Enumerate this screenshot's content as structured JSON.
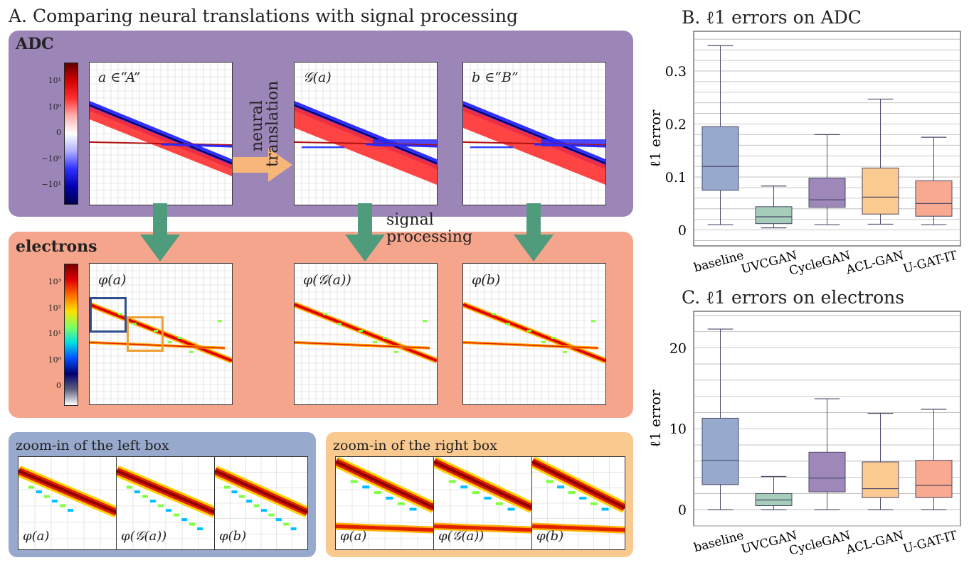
{
  "figure": {
    "panel_a_title": "A. Comparing neural translations with signal processing",
    "adc_label": "ADC",
    "electrons_label": "electrons",
    "neural_translation_label": [
      "neural",
      "translation"
    ],
    "signal_processing_label": [
      "signal",
      "processing"
    ],
    "adc_panels": [
      "a ∈“A”",
      "𝒢(a)",
      "b ∈“B”"
    ],
    "electron_panels": [
      "φ(a)",
      "φ(𝒢(a))",
      "φ(b)"
    ],
    "adc_colorbar_ticks": [
      "10¹",
      "10⁰",
      "0",
      "−10⁰",
      "−10¹"
    ],
    "electron_colorbar_ticks": [
      "10³",
      "10²",
      "10¹",
      "10⁰",
      "0"
    ],
    "zoom_left_title": "zoom-in of the left box",
    "zoom_right_title": "zoom-in of the right box",
    "zoom_labels": [
      "φ(a)",
      "φ(𝒢(a))",
      "φ(b)"
    ],
    "colors": {
      "adc_bg": "#9c86b8",
      "electrons_bg": "#f5a58b",
      "zoom_left_bg": "#97a9cc",
      "zoom_right_bg": "#f9c98f",
      "arrow_green": "#4e9c7c",
      "arrow_orange": "#f7b77a"
    }
  },
  "chart_data": [
    {
      "type": "box",
      "title": "B. ℓ1 errors on ADC",
      "ylabel": "ℓ1 error",
      "categories": [
        "baseline",
        "UVCGAN",
        "CycleGAN",
        "ACL-GAN",
        "U-GAT-IT"
      ],
      "ylim": [
        -0.03,
        0.375
      ],
      "yticks": [
        0,
        0.1,
        0.2,
        0.3
      ],
      "ytick_labels": [
        "0",
        "0.1",
        "0.2",
        "0.3"
      ],
      "boxes": [
        {
          "whisker_low": 0.01,
          "q1": 0.075,
          "median": 0.12,
          "q3": 0.195,
          "whisker_high": 0.348,
          "color": "#97aacd"
        },
        {
          "whisker_low": 0.004,
          "q1": 0.012,
          "median": 0.025,
          "q3": 0.044,
          "whisker_high": 0.083,
          "color": "#a5cdb9"
        },
        {
          "whisker_low": 0.01,
          "q1": 0.043,
          "median": 0.057,
          "q3": 0.098,
          "whisker_high": 0.18,
          "color": "#9e88b9"
        },
        {
          "whisker_low": 0.011,
          "q1": 0.03,
          "median": 0.062,
          "q3": 0.117,
          "whisker_high": 0.247,
          "color": "#fbca90"
        },
        {
          "whisker_low": 0.01,
          "q1": 0.026,
          "median": 0.05,
          "q3": 0.093,
          "whisker_high": 0.175,
          "color": "#f8a990"
        }
      ],
      "grid": true
    },
    {
      "type": "box",
      "title": "C. ℓ1 errors on electrons",
      "ylabel": "ℓ1 error",
      "categories": [
        "baseline",
        "UVCGAN",
        "CycleGAN",
        "ACL-GAN",
        "U-GAT-IT"
      ],
      "ylim": [
        -2.0,
        24.5
      ],
      "yticks": [
        0,
        10,
        20
      ],
      "ytick_labels": [
        "0",
        "10",
        "20"
      ],
      "boxes": [
        {
          "whisker_low": 0,
          "q1": 3.1,
          "median": 6.1,
          "q3": 11.3,
          "whisker_high": 22.3,
          "color": "#97aacd"
        },
        {
          "whisker_low": 0,
          "q1": 0.5,
          "median": 1.2,
          "q3": 2.0,
          "whisker_high": 4.1,
          "color": "#a5cdb9"
        },
        {
          "whisker_low": 0,
          "q1": 2.2,
          "median": 3.9,
          "q3": 7.1,
          "whisker_high": 13.7,
          "color": "#9e88b9"
        },
        {
          "whisker_low": 0,
          "q1": 1.5,
          "median": 2.6,
          "q3": 5.9,
          "whisker_high": 11.9,
          "color": "#fbca90"
        },
        {
          "whisker_low": 0,
          "q1": 1.5,
          "median": 3.0,
          "q3": 6.1,
          "whisker_high": 12.4,
          "color": "#f8a990"
        }
      ],
      "grid": true
    }
  ]
}
